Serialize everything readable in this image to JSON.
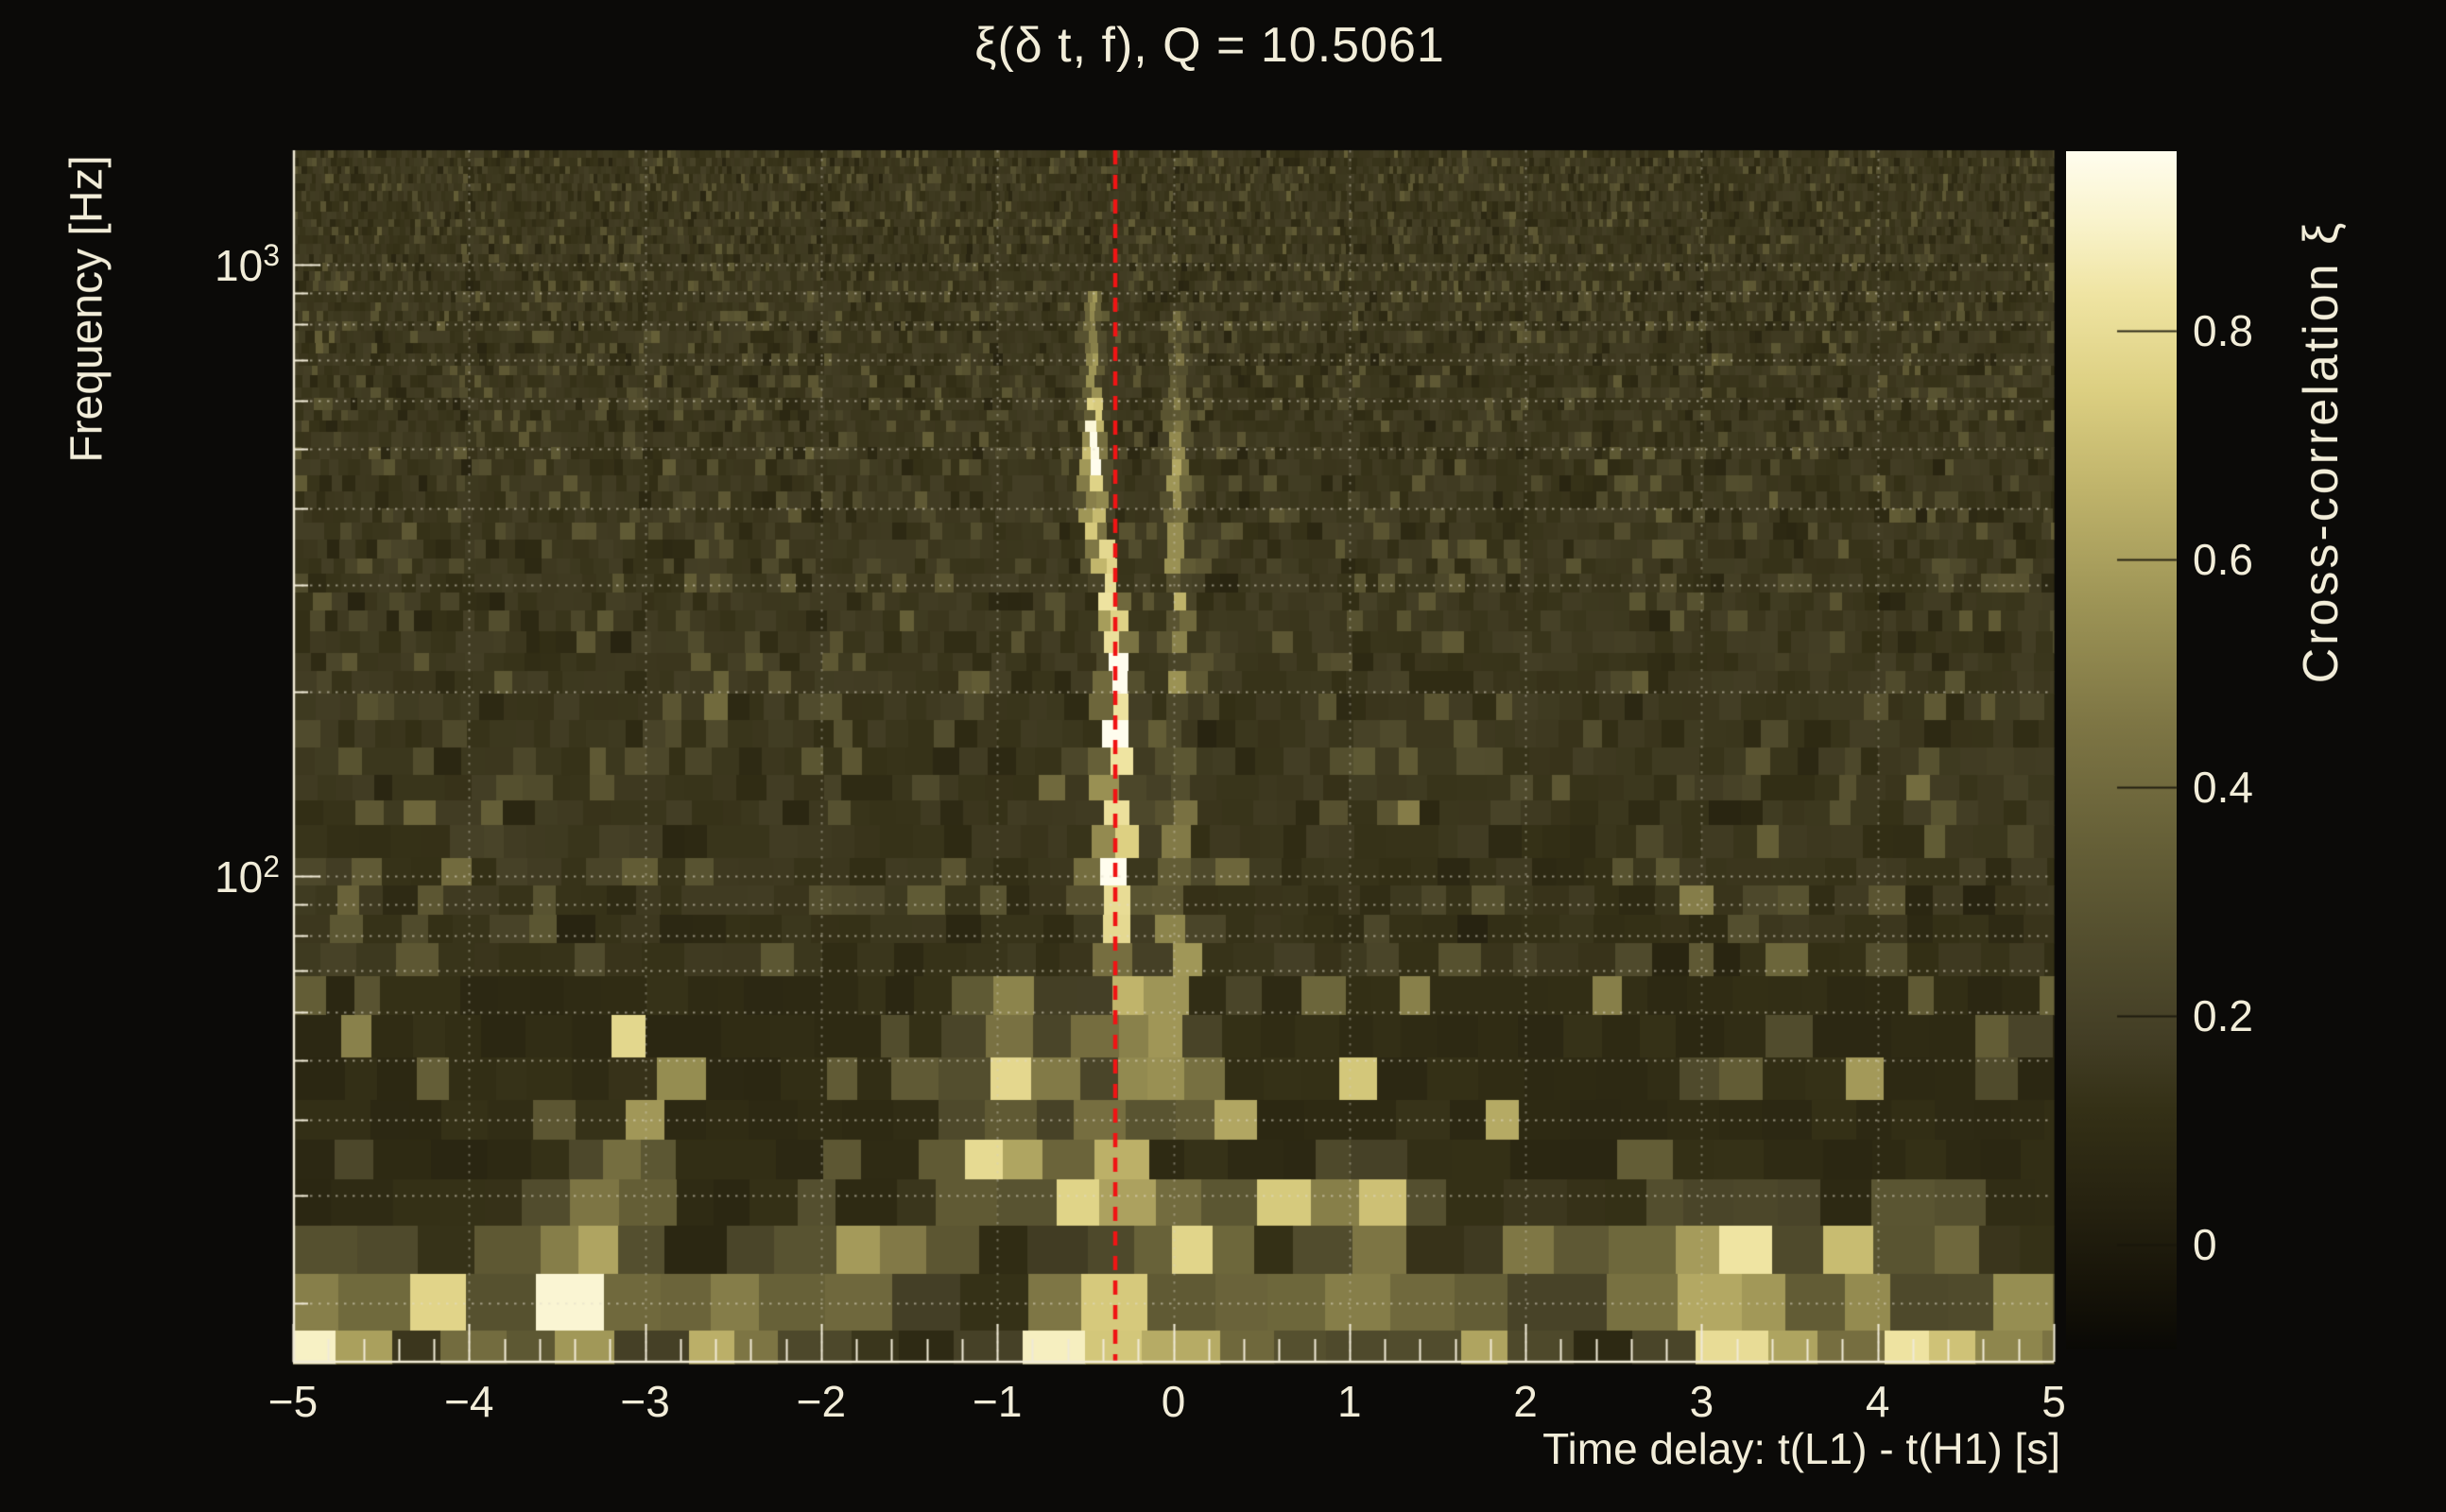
{
  "chart_data": {
    "type": "heatmap",
    "title": "ξ(δ t, f), Q = 10.5061",
    "q_value": "10.5061",
    "xlabel": "Time delay: t(L1) - t(H1) [s]",
    "ylabel": "Frequency [Hz]",
    "x_range_s": [
      -5,
      5
    ],
    "x_major_ticks": [
      {
        "label": "−5",
        "value": -5
      },
      {
        "label": "−4",
        "value": -4
      },
      {
        "label": "−3",
        "value": -3
      },
      {
        "label": "−2",
        "value": -2
      },
      {
        "label": "−1",
        "value": -1
      },
      {
        "label": "0",
        "value": 0
      },
      {
        "label": "1",
        "value": 1
      },
      {
        "label": "2",
        "value": 2
      },
      {
        "label": "3",
        "value": 3
      },
      {
        "label": "4",
        "value": 4
      },
      {
        "label": "5",
        "value": 5
      }
    ],
    "x_minor_step_s": 0.2,
    "y_scale": "log",
    "y_range_hz": [
      16,
      1540
    ],
    "y_decade_ticks": [
      {
        "mantissa": "10",
        "exponent": "3",
        "hz": 1000
      },
      {
        "mantissa": "10",
        "exponent": "2",
        "hz": 100
      }
    ],
    "grid": {
      "style": "dotted",
      "vertical_at_integer_seconds": true,
      "horizontal_at_log_minors": true,
      "color": "#cfc9b4"
    },
    "marker_line": {
      "x_s": -0.33,
      "color": "#f01414",
      "style": "dashed",
      "meaning": "vertical red dashed line"
    },
    "colorbar": {
      "label": "Cross-correlation ξ",
      "range": [
        -0.092,
        0.957
      ],
      "ticks": [
        {
          "label": "0.8",
          "value": 0.8
        },
        {
          "label": "0.6",
          "value": 0.6
        },
        {
          "label": "0.4",
          "value": 0.4
        },
        {
          "label": "0.2",
          "value": 0.2
        },
        {
          "label": "0",
          "value": 0
        }
      ],
      "stops": [
        {
          "pos": 0.0,
          "color": "#0a0905"
        },
        {
          "pos": 0.06,
          "color": "#181509"
        },
        {
          "pos": 0.12,
          "color": "#262210"
        },
        {
          "pos": 0.2,
          "color": "#343016"
        },
        {
          "pos": 0.26,
          "color": "#433e25"
        },
        {
          "pos": 0.33,
          "color": "#514c2d"
        },
        {
          "pos": 0.42,
          "color": "#655f37"
        },
        {
          "pos": 0.52,
          "color": "#7d7544"
        },
        {
          "pos": 0.62,
          "color": "#9c9355"
        },
        {
          "pos": 0.72,
          "color": "#c0b46b"
        },
        {
          "pos": 0.8,
          "color": "#dccf81"
        },
        {
          "pos": 0.88,
          "color": "#efe4a2"
        },
        {
          "pos": 0.94,
          "color": "#f9f3cb"
        },
        {
          "pos": 1.0,
          "color": "#fffdee"
        }
      ]
    },
    "ridges": [
      {
        "name": "primary",
        "dt_s": [
          -0.46,
          -0.33
        ],
        "f_hz": [
          28,
          900
        ],
        "peak_xi": 0.97
      },
      {
        "name": "secondary",
        "dt_s": [
          0.0,
          0.07
        ],
        "f_hz": [
          40,
          850
        ],
        "peak_xi": 0.68
      }
    ],
    "hot_spots": [
      {
        "dt": -4.82,
        "f": 17.3,
        "xi": 0.92
      },
      {
        "dt": -4.4,
        "f": 21.0,
        "xi": 0.5
      },
      {
        "dt": -3.95,
        "f": 18.0,
        "xi": 0.45
      },
      {
        "dt": -3.38,
        "f": 19.5,
        "xi": 0.95
      },
      {
        "dt": -3.32,
        "f": 26.0,
        "xi": 0.7
      },
      {
        "dt": -3.1,
        "f": 32.0,
        "xi": 0.5
      },
      {
        "dt": -2.58,
        "f": 18.0,
        "xi": 0.72
      },
      {
        "dt": -2.2,
        "f": 22.0,
        "xi": 0.45
      },
      {
        "dt": -1.95,
        "f": 20.0,
        "xi": 0.5
      },
      {
        "dt": -1.5,
        "f": 24.0,
        "xi": 0.48
      },
      {
        "dt": -1.02,
        "f": 34.0,
        "xi": 0.82
      },
      {
        "dt": -0.88,
        "f": 47.0,
        "xi": 0.8
      },
      {
        "dt": -0.95,
        "f": 60.0,
        "xi": 0.6
      },
      {
        "dt": -0.63,
        "f": 17.2,
        "xi": 0.9
      },
      {
        "dt": -0.45,
        "f": 30.0,
        "xi": 0.85
      },
      {
        "dt": -0.3,
        "f": 17.5,
        "xi": 0.75
      },
      {
        "dt": -0.12,
        "f": 17.2,
        "xi": 0.8
      },
      {
        "dt": 0.02,
        "f": 45.0,
        "xi": 0.6
      },
      {
        "dt": 0.12,
        "f": 26.0,
        "xi": 0.68
      },
      {
        "dt": 0.5,
        "f": 18.5,
        "xi": 0.5
      },
      {
        "dt": 0.85,
        "f": 21.0,
        "xi": 0.5
      },
      {
        "dt": 1.12,
        "f": 28.0,
        "xi": 0.78
      },
      {
        "dt": 1.2,
        "f": 20.0,
        "xi": 0.6
      },
      {
        "dt": 1.75,
        "f": 17.3,
        "xi": 0.62
      },
      {
        "dt": 2.1,
        "f": 24.0,
        "xi": 0.5
      },
      {
        "dt": 2.62,
        "f": 22.0,
        "xi": 0.55
      },
      {
        "dt": 3.1,
        "f": 19.0,
        "xi": 0.7
      },
      {
        "dt": 3.18,
        "f": 24.0,
        "xi": 0.88
      },
      {
        "dt": 3.3,
        "f": 17.6,
        "xi": 0.95
      },
      {
        "dt": 3.88,
        "f": 20.0,
        "xi": 0.55
      },
      {
        "dt": 4.05,
        "f": 17.3,
        "xi": 0.6
      },
      {
        "dt": 4.35,
        "f": 26.0,
        "xi": 0.48
      },
      {
        "dt": 4.82,
        "f": 18.5,
        "xi": 0.65
      }
    ],
    "style": {
      "background": "#0b0a08",
      "text_color": "#f2edd9",
      "axis_color": "#f0ead6"
    }
  }
}
